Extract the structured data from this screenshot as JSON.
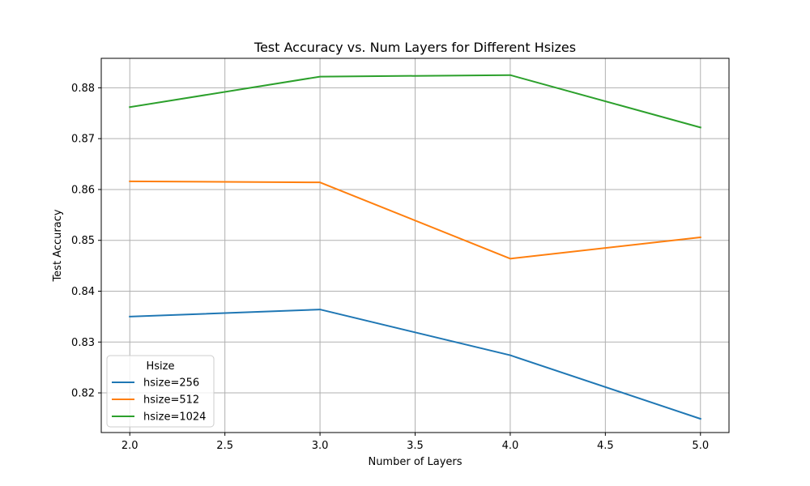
{
  "chart_data": {
    "type": "line",
    "title": "Test Accuracy vs. Num Layers for Different Hsizes",
    "xlabel": "Number of Layers",
    "ylabel": "Test Accuracy",
    "x": [
      2.0,
      3.0,
      4.0,
      5.0
    ],
    "xlim": [
      1.85,
      5.15
    ],
    "ylim": [
      0.8122,
      0.8858
    ],
    "xticks": [
      2.0,
      2.5,
      3.0,
      3.5,
      4.0,
      4.5,
      5.0
    ],
    "xtick_labels": [
      "2.0",
      "2.5",
      "3.0",
      "3.5",
      "4.0",
      "4.5",
      "5.0"
    ],
    "yticks": [
      0.82,
      0.83,
      0.84,
      0.85,
      0.86,
      0.87,
      0.88
    ],
    "ytick_labels": [
      "0.82",
      "0.83",
      "0.84",
      "0.85",
      "0.86",
      "0.87",
      "0.88"
    ],
    "grid": true,
    "legend": {
      "title": "Hsize",
      "placement": "lower-left"
    },
    "series": [
      {
        "name": "hsize=256",
        "color": "#1f77b4",
        "values": [
          0.835,
          0.8364,
          0.8274,
          0.8149
        ]
      },
      {
        "name": "hsize=512",
        "color": "#ff7f0e",
        "values": [
          0.8616,
          0.8614,
          0.8464,
          0.8506
        ]
      },
      {
        "name": "hsize=1024",
        "color": "#2ca02c",
        "values": [
          0.8762,
          0.8822,
          0.8825,
          0.8722
        ]
      }
    ]
  }
}
